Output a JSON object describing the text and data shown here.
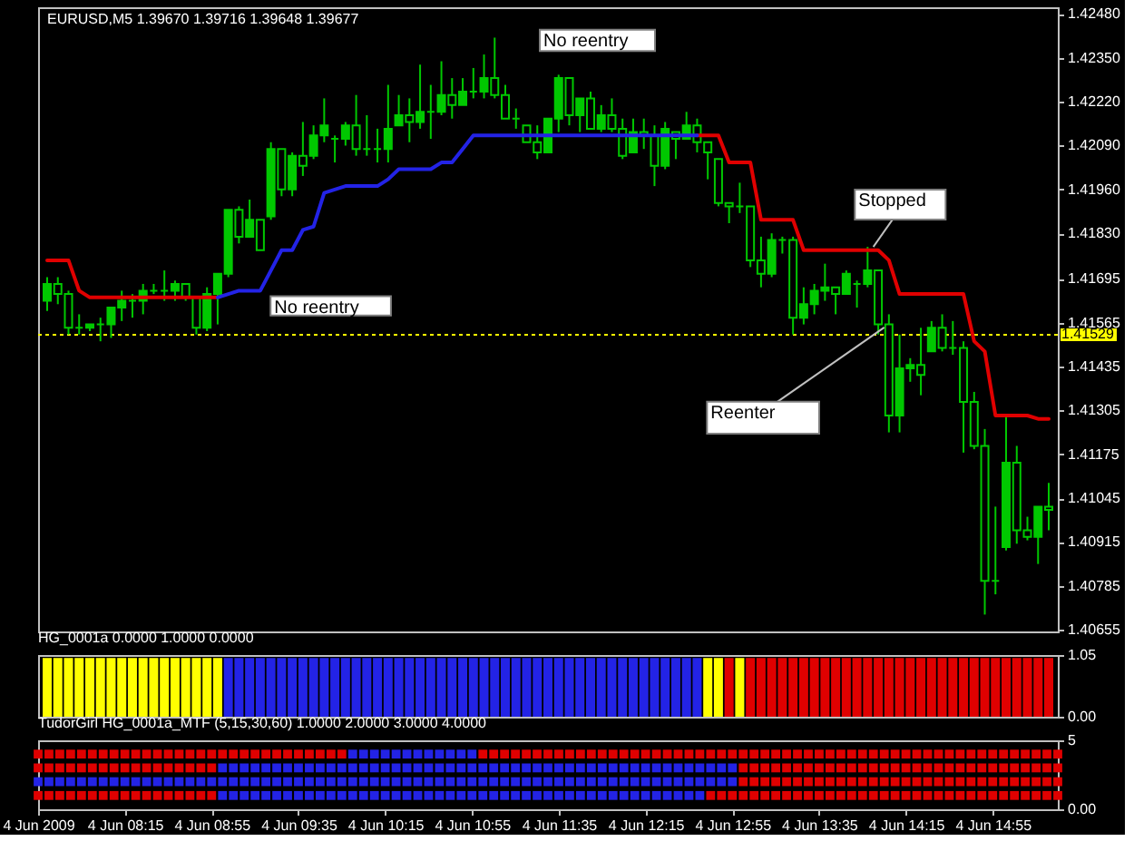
{
  "chart_data": [
    {
      "type": "candlestick",
      "title": "EURUSD,M5 1.39670 1.39716 1.39648 1.39677",
      "categories": [
        null,
        null,
        null,
        null,
        null,
        null,
        null,
        null,
        null,
        null,
        null,
        null,
        null,
        null,
        null,
        null,
        null,
        null,
        null,
        null,
        null,
        null,
        null,
        null,
        null,
        null,
        null,
        null,
        null,
        null,
        null,
        null,
        null,
        null,
        null,
        null,
        null,
        null,
        null,
        null,
        null,
        null,
        null,
        null,
        null,
        null,
        null,
        null,
        null,
        null,
        null,
        null,
        null,
        null,
        null,
        null,
        null,
        null,
        null,
        null,
        null,
        null,
        null,
        null,
        null,
        null,
        null,
        null,
        null,
        null,
        null,
        null,
        null,
        null,
        null,
        null,
        null,
        null,
        null,
        null,
        null,
        null,
        null,
        null,
        null,
        null,
        null,
        null,
        null,
        null,
        null,
        null,
        null,
        null,
        null
      ],
      "ohlc": [
        [
          1.4163,
          1.417,
          1.416,
          1.4168
        ],
        [
          1.4168,
          1.417,
          1.4162,
          1.4165
        ],
        [
          1.4165,
          1.4166,
          1.4153,
          1.4155
        ],
        [
          1.4155,
          1.4159,
          1.4153,
          1.4155
        ],
        [
          1.4155,
          1.4156,
          1.4154,
          1.4156
        ],
        [
          1.4156,
          1.4158,
          1.4151,
          1.4156
        ],
        [
          1.4156,
          1.4161,
          1.4152,
          1.4161
        ],
        [
          1.4161,
          1.4166,
          1.4157,
          1.4163
        ],
        [
          1.4163,
          1.4165,
          1.4158,
          1.4163
        ],
        [
          1.4163,
          1.4168,
          1.4159,
          1.4166
        ],
        [
          1.4166,
          1.4168,
          1.4165,
          1.4166
        ],
        [
          1.4166,
          1.4172,
          1.4163,
          1.4166
        ],
        [
          1.4166,
          1.4169,
          1.4163,
          1.4168
        ],
        [
          1.4168,
          1.4168,
          1.4163,
          1.4164
        ],
        [
          1.4164,
          1.4164,
          1.4153,
          1.4155
        ],
        [
          1.4155,
          1.4167,
          1.4154,
          1.4165
        ],
        [
          1.4165,
          1.4171,
          1.4156,
          1.4171
        ],
        [
          1.4171,
          1.419,
          1.417,
          1.419
        ],
        [
          1.419,
          1.4191,
          1.418,
          1.4182
        ],
        [
          1.4182,
          1.4193,
          1.4182,
          1.4187
        ],
        [
          1.4187,
          1.4187,
          1.4178,
          1.4178
        ],
        [
          1.4188,
          1.421,
          1.4187,
          1.4208
        ],
        [
          1.4208,
          1.4208,
          1.4194,
          1.4196
        ],
        [
          1.4196,
          1.4207,
          1.4194,
          1.4206
        ],
        [
          1.4206,
          1.4216,
          1.42,
          1.4203
        ],
        [
          1.4206,
          1.4215,
          1.4205,
          1.4212
        ],
        [
          1.4212,
          1.4223,
          1.421,
          1.4215
        ],
        [
          1.4211,
          1.4212,
          1.4204,
          1.4211
        ],
        [
          1.4211,
          1.4216,
          1.4209,
          1.4215
        ],
        [
          1.4215,
          1.4224,
          1.4206,
          1.4208
        ],
        [
          1.4208,
          1.4218,
          1.4206,
          1.4208
        ],
        [
          1.4208,
          1.4214,
          1.4204,
          1.4208
        ],
        [
          1.4208,
          1.4227,
          1.4204,
          1.4214
        ],
        [
          1.4215,
          1.4224,
          1.4215,
          1.4218
        ],
        [
          1.4218,
          1.4223,
          1.421,
          1.4216
        ],
        [
          1.4216,
          1.4233,
          1.4214,
          1.4219
        ],
        [
          1.4219,
          1.4227,
          1.4211,
          1.4219
        ],
        [
          1.4219,
          1.4234,
          1.4218,
          1.4224
        ],
        [
          1.4224,
          1.4229,
          1.4217,
          1.4221
        ],
        [
          1.4221,
          1.4229,
          1.4221,
          1.4225
        ],
        [
          1.4225,
          1.4232,
          1.4223,
          1.4225
        ],
        [
          1.4225,
          1.4236,
          1.4223,
          1.4229
        ],
        [
          1.4229,
          1.4241,
          1.4223,
          1.4224
        ],
        [
          1.4224,
          1.4227,
          1.4217,
          1.4217
        ],
        [
          1.4217,
          1.422,
          1.4214,
          1.4217
        ],
        [
          1.4215,
          1.4215,
          1.421,
          1.421
        ],
        [
          1.421,
          1.4215,
          1.4205,
          1.4207
        ],
        [
          1.4207,
          1.4217,
          1.4207,
          1.4217
        ],
        [
          1.4217,
          1.423,
          1.4213,
          1.4229
        ],
        [
          1.4229,
          1.4229,
          1.4215,
          1.4218
        ],
        [
          1.4218,
          1.4223,
          1.4213,
          1.4223
        ],
        [
          1.4223,
          1.4225,
          1.4214,
          1.4214
        ],
        [
          1.4214,
          1.4221,
          1.4213,
          1.4218
        ],
        [
          1.4218,
          1.4223,
          1.4213,
          1.4214
        ],
        [
          1.4214,
          1.4217,
          1.4205,
          1.4206
        ],
        [
          1.4207,
          1.4217,
          1.4207,
          1.4213
        ],
        [
          1.4213,
          1.4217,
          1.4208,
          1.4212
        ],
        [
          1.4212,
          1.4215,
          1.4197,
          1.4203
        ],
        [
          1.4203,
          1.4216,
          1.4202,
          1.4214
        ],
        [
          1.4213,
          1.4213,
          1.4205,
          1.4211
        ],
        [
          1.4211,
          1.4219,
          1.4211,
          1.4215
        ],
        [
          1.4215,
          1.4217,
          1.4207,
          1.421
        ],
        [
          1.421,
          1.421,
          1.4199,
          1.4207
        ],
        [
          1.4205,
          1.4205,
          1.4191,
          1.4192
        ],
        [
          1.4192,
          1.4192,
          1.4186,
          1.4191
        ],
        [
          1.4191,
          1.4198,
          1.4189,
          1.4191
        ],
        [
          1.4191,
          1.4191,
          1.4173,
          1.4175
        ],
        [
          1.4175,
          1.4182,
          1.4167,
          1.4171
        ],
        [
          1.4171,
          1.4183,
          1.417,
          1.4181
        ],
        [
          1.4181,
          1.4182,
          1.4177,
          1.4181
        ],
        [
          1.4181,
          1.4182,
          1.4153,
          1.4158
        ],
        [
          1.4158,
          1.4167,
          1.4156,
          1.4162
        ],
        [
          1.4162,
          1.4168,
          1.4159,
          1.4166
        ],
        [
          1.4166,
          1.4174,
          1.4163,
          1.4167
        ],
        [
          1.4167,
          1.4167,
          1.4159,
          1.4165
        ],
        [
          1.4165,
          1.4172,
          1.4165,
          1.4171
        ],
        [
          1.4168,
          1.4169,
          1.4161,
          1.4168
        ],
        [
          1.4168,
          1.4179,
          1.4167,
          1.4172
        ],
        [
          1.4172,
          1.4172,
          1.4153,
          1.4156
        ],
        [
          1.4156,
          1.4159,
          1.4124,
          1.4129
        ],
        [
          1.4129,
          1.4153,
          1.4124,
          1.4143
        ],
        [
          1.4143,
          1.4146,
          1.4139,
          1.4144
        ],
        [
          1.4144,
          1.4155,
          1.4135,
          1.4141
        ],
        [
          1.4148,
          1.4157,
          1.4148,
          1.4155
        ],
        [
          1.4155,
          1.4159,
          1.4148,
          1.4149
        ],
        [
          1.4149,
          1.4157,
          1.4147,
          1.4149
        ],
        [
          1.4149,
          1.4151,
          1.4118,
          1.4133
        ],
        [
          1.4133,
          1.4136,
          1.4119,
          1.412
        ],
        [
          1.412,
          1.4125,
          1.407,
          1.408
        ],
        [
          1.408,
          1.4102,
          1.4076,
          1.408
        ],
        [
          1.409,
          1.4129,
          1.4089,
          1.4115
        ],
        [
          1.4115,
          1.412,
          1.4091,
          1.4095
        ],
        [
          1.4095,
          1.4099,
          1.4092,
          1.4093
        ],
        [
          1.4093,
          1.4102,
          1.4085,
          1.4102
        ],
        [
          1.4102,
          1.4109,
          1.4095,
          1.4101
        ]
      ],
      "color": "#00c800",
      "series": [
        {
          "type": "line",
          "color": "#e00000",
          "values": [
            1.4175,
            1.4175,
            1.4175,
            1.4166,
            1.4164,
            1.4164,
            1.4164,
            1.4164,
            1.4164,
            1.4164,
            1.4164,
            1.4164,
            1.4164,
            1.4164,
            1.4164,
            1.4164,
            1.4164,
            null,
            null,
            null,
            null,
            null,
            null,
            null,
            null,
            null,
            null,
            null,
            null,
            null,
            null,
            null,
            null,
            null,
            null,
            null,
            null,
            null,
            null,
            null,
            null,
            null,
            null,
            null,
            null,
            null,
            null,
            null,
            null,
            null,
            null,
            null,
            null,
            null,
            null,
            null,
            null,
            null,
            null,
            null,
            null,
            1.4212,
            1.4212,
            1.4212,
            1.4204,
            1.4204,
            1.4204,
            1.4187,
            1.4187,
            1.4187,
            1.4187,
            1.4178,
            1.4178,
            1.4178,
            1.4178,
            1.4178,
            1.4178,
            1.4178,
            1.4178,
            1.4175,
            1.4165,
            1.4165,
            1.4165,
            1.4165,
            1.4165,
            1.4165,
            1.4165,
            1.4151,
            1.4148,
            1.4129,
            1.4129,
            1.4129,
            1.4129,
            1.4128,
            1.4128
          ]
        },
        {
          "type": "line",
          "color": "#2323e6",
          "values": [
            null,
            null,
            null,
            null,
            null,
            null,
            null,
            null,
            null,
            null,
            null,
            null,
            null,
            null,
            null,
            null,
            1.4164,
            1.4165,
            1.4166,
            1.4166,
            1.4166,
            1.4172,
            1.4178,
            1.4178,
            1.4184,
            1.4185,
            1.4195,
            1.4196,
            1.4197,
            1.4197,
            1.4197,
            1.4197,
            1.4199,
            1.4202,
            1.4202,
            1.4202,
            1.4202,
            1.4204,
            1.4204,
            1.4208,
            1.4212,
            1.4212,
            1.4212,
            1.4212,
            1.4212,
            1.4212,
            1.4212,
            1.4212,
            1.4212,
            1.4212,
            1.4212,
            1.4212,
            1.4212,
            1.4212,
            1.4212,
            1.4212,
            1.4212,
            1.4212,
            1.4212,
            1.4212,
            1.4212,
            1.4212,
            null,
            null,
            null,
            null,
            null,
            null,
            null,
            null,
            null,
            null,
            null,
            null,
            null,
            null,
            null,
            null,
            null,
            null,
            null,
            null,
            null,
            null,
            null,
            null,
            null,
            null,
            null,
            null,
            null,
            null,
            null,
            null,
            null
          ]
        }
      ],
      "ylim": [
        1.4065,
        1.425
      ],
      "yticks": [
        {
          "value": 1.4248,
          "label": "1.42480"
        },
        {
          "value": 1.4235,
          "label": "1.42350"
        },
        {
          "value": 1.4222,
          "label": "1.42220"
        },
        {
          "value": 1.4209,
          "label": "1.42090"
        },
        {
          "value": 1.4196,
          "label": "1.41960"
        },
        {
          "value": 1.4183,
          "label": "1.41830"
        },
        1.41695,
        1.41565,
        1.41435,
        1.41305,
        1.41175,
        1.41045,
        1.40915,
        1.40785,
        1.40655
      ],
      "ref_lines": [
        {
          "axis": "y",
          "value": 1.41529,
          "label": "1.41529",
          "color": "#ffff00",
          "line_style": "dotted"
        }
      ],
      "annotations": [
        "No reentry",
        "Stopped",
        "No reentry",
        "Reenter"
      ],
      "tick_labels": "y"
    },
    {
      "type": "bar",
      "title": "HG_0001a 0.0000 1.0000 0.0000",
      "categories": [
        null,
        null,
        null,
        null,
        null,
        null,
        null,
        null,
        null,
        null,
        null,
        null,
        null,
        null,
        null,
        null,
        null,
        null,
        null,
        null,
        null,
        null,
        null,
        null,
        null,
        null,
        null,
        null,
        null,
        null,
        null,
        null,
        null,
        null,
        null,
        null,
        null,
        null,
        null,
        null,
        null,
        null,
        null,
        null,
        null,
        null,
        null,
        null,
        null,
        null,
        null,
        null,
        null,
        null,
        null,
        null,
        null,
        null,
        null,
        null,
        null,
        null,
        null,
        null,
        null,
        null,
        null,
        null,
        null,
        null,
        null,
        null,
        null,
        null,
        null,
        null,
        null,
        null,
        null,
        null,
        null,
        null,
        null,
        null,
        null,
        null,
        null,
        null,
        null,
        null,
        null,
        null,
        null,
        null,
        null
      ],
      "values": [
        1,
        1,
        1,
        1,
        1,
        1,
        1,
        1,
        1,
        1,
        1,
        1,
        1,
        1,
        1,
        1,
        1,
        1,
        1,
        1,
        1,
        1,
        1,
        1,
        1,
        1,
        1,
        1,
        1,
        1,
        1,
        1,
        1,
        1,
        1,
        1,
        1,
        1,
        1,
        1,
        1,
        1,
        1,
        1,
        1,
        1,
        1,
        1,
        1,
        1,
        1,
        1,
        1,
        1,
        1,
        1,
        1,
        1,
        1,
        1,
        1,
        1,
        1,
        1,
        1,
        1,
        1,
        1,
        1,
        1,
        1,
        1,
        1,
        1,
        1,
        1,
        1,
        1,
        1,
        1,
        1,
        1,
        1,
        1,
        1,
        1,
        1,
        1,
        1,
        1,
        1,
        1,
        1,
        1,
        1
      ],
      "colors": [
        "#ffff00",
        "#ffff00",
        "#ffff00",
        "#ffff00",
        "#ffff00",
        "#ffff00",
        "#ffff00",
        "#ffff00",
        "#ffff00",
        "#ffff00",
        "#ffff00",
        "#ffff00",
        "#ffff00",
        "#ffff00",
        "#ffff00",
        "#ffff00",
        "#ffff00",
        "#2323e6",
        "#2323e6",
        "#2323e6",
        "#2323e6",
        "#2323e6",
        "#2323e6",
        "#2323e6",
        "#2323e6",
        "#2323e6",
        "#2323e6",
        "#2323e6",
        "#2323e6",
        "#2323e6",
        "#2323e6",
        "#2323e6",
        "#2323e6",
        "#2323e6",
        "#2323e6",
        "#2323e6",
        "#2323e6",
        "#2323e6",
        "#2323e6",
        "#2323e6",
        "#2323e6",
        "#2323e6",
        "#2323e6",
        "#2323e6",
        "#2323e6",
        "#2323e6",
        "#2323e6",
        "#2323e6",
        "#2323e6",
        "#2323e6",
        "#2323e6",
        "#2323e6",
        "#2323e6",
        "#2323e6",
        "#2323e6",
        "#2323e6",
        "#2323e6",
        "#2323e6",
        "#2323e6",
        "#2323e6",
        "#2323e6",
        "#2323e6",
        "#ffff00",
        "#ffff00",
        "#e00000",
        "#ffff00",
        "#e00000",
        "#e00000",
        "#e00000",
        "#e00000",
        "#e00000",
        "#e00000",
        "#e00000",
        "#e00000",
        "#e00000",
        "#e00000",
        "#e00000",
        "#e00000",
        "#e00000",
        "#e00000",
        "#e00000",
        "#e00000",
        "#e00000",
        "#e00000",
        "#e00000",
        "#e00000",
        "#e00000",
        "#e00000",
        "#e00000",
        "#e00000",
        "#e00000",
        "#e00000",
        "#e00000",
        "#e00000",
        "#e00000"
      ],
      "ylim": [
        0,
        1.05
      ],
      "yticks": [
        1.05,
        {
          "value": 0,
          "label": "0.00"
        }
      ],
      "tick_labels": "y"
    },
    {
      "type": "scatter",
      "title": "TudorGirl HG_0001a_MTF (5,15,30,60) 1.0000 2.0000 3.0000 4.0000",
      "categories": [
        "4 Jun 2009",
        null,
        null,
        null,
        null,
        null,
        null,
        null,
        "4 Jun 08:15",
        null,
        null,
        null,
        null,
        null,
        null,
        null,
        "4 Jun 08:55",
        null,
        null,
        null,
        null,
        null,
        null,
        null,
        "4 Jun 09:35",
        null,
        null,
        null,
        null,
        null,
        null,
        null,
        "4 Jun 10:15",
        null,
        null,
        null,
        null,
        null,
        null,
        null,
        "4 Jun 10:55",
        null,
        null,
        null,
        null,
        null,
        null,
        null,
        "4 Jun 11:35",
        null,
        null,
        null,
        null,
        null,
        null,
        null,
        "4 Jun 12:15",
        null,
        null,
        null,
        null,
        null,
        null,
        null,
        "4 Jun 12:55",
        null,
        null,
        null,
        null,
        null,
        null,
        null,
        "4 Jun 13:35",
        null,
        null,
        null,
        null,
        null,
        null,
        null,
        "4 Jun 14:15",
        null,
        null,
        null,
        null,
        null,
        null,
        null,
        "4 Jun 14:55",
        null,
        null,
        null,
        null,
        null,
        null
      ],
      "marker": "square",
      "series": [
        {
          "values": [
            4,
            4,
            4,
            4,
            4,
            4,
            4,
            4,
            4,
            4,
            4,
            4,
            4,
            4,
            4,
            4,
            4,
            4,
            4,
            4,
            4,
            4,
            4,
            4,
            4,
            4,
            4,
            4,
            4,
            4,
            4,
            4,
            4,
            4,
            4,
            4,
            4,
            4,
            4,
            4,
            4,
            4,
            4,
            4,
            4,
            4,
            4,
            4,
            4,
            4,
            4,
            4,
            4,
            4,
            4,
            4,
            4,
            4,
            4,
            4,
            4,
            4,
            4,
            4,
            4,
            4,
            4,
            4,
            4,
            4,
            4,
            4,
            4,
            4,
            4,
            4,
            4,
            4,
            4,
            4,
            4,
            4,
            4,
            4,
            4,
            4,
            4,
            4,
            4,
            4,
            4,
            4,
            4,
            4,
            4
          ],
          "colors": [
            "#e00000",
            "#e00000",
            "#e00000",
            "#e00000",
            "#e00000",
            "#e00000",
            "#e00000",
            "#e00000",
            "#e00000",
            "#e00000",
            "#e00000",
            "#e00000",
            "#e00000",
            "#e00000",
            "#e00000",
            "#e00000",
            "#e00000",
            "#e00000",
            "#e00000",
            "#e00000",
            "#e00000",
            "#e00000",
            "#e00000",
            "#e00000",
            "#e00000",
            "#e00000",
            "#e00000",
            "#e00000",
            "#e00000",
            "#2323e6",
            "#2323e6",
            "#2323e6",
            "#2323e6",
            "#2323e6",
            "#2323e6",
            "#2323e6",
            "#2323e6",
            "#2323e6",
            "#2323e6",
            "#2323e6",
            "#2323e6",
            "#e00000",
            "#e00000",
            "#e00000",
            "#e00000",
            "#e00000",
            "#e00000",
            "#e00000",
            "#e00000",
            "#e00000",
            "#e00000",
            "#e00000",
            "#e00000",
            "#e00000",
            "#e00000",
            "#e00000",
            "#e00000",
            "#e00000",
            "#e00000",
            "#e00000",
            "#e00000",
            "#e00000",
            "#e00000",
            "#e00000",
            "#e00000",
            "#e00000",
            "#e00000",
            "#e00000",
            "#e00000",
            "#e00000",
            "#e00000",
            "#e00000",
            "#e00000",
            "#e00000",
            "#e00000",
            "#e00000",
            "#e00000",
            "#e00000",
            "#e00000",
            "#e00000",
            "#e00000",
            "#e00000",
            "#e00000",
            "#e00000",
            "#e00000",
            "#e00000",
            "#e00000",
            "#e00000",
            "#e00000",
            "#e00000",
            "#e00000",
            "#e00000",
            "#e00000",
            "#e00000",
            "#e00000"
          ]
        },
        {
          "values": [
            3,
            3,
            3,
            3,
            3,
            3,
            3,
            3,
            3,
            3,
            3,
            3,
            3,
            3,
            3,
            3,
            3,
            3,
            3,
            3,
            3,
            3,
            3,
            3,
            3,
            3,
            3,
            3,
            3,
            3,
            3,
            3,
            3,
            3,
            3,
            3,
            3,
            3,
            3,
            3,
            3,
            3,
            3,
            3,
            3,
            3,
            3,
            3,
            3,
            3,
            3,
            3,
            3,
            3,
            3,
            3,
            3,
            3,
            3,
            3,
            3,
            3,
            3,
            3,
            3,
            3,
            3,
            3,
            3,
            3,
            3,
            3,
            3,
            3,
            3,
            3,
            3,
            3,
            3,
            3,
            3,
            3,
            3,
            3,
            3,
            3,
            3,
            3,
            3,
            3,
            3,
            3,
            3,
            3,
            3
          ],
          "colors": [
            "#e00000",
            "#e00000",
            "#e00000",
            "#e00000",
            "#e00000",
            "#e00000",
            "#e00000",
            "#e00000",
            "#e00000",
            "#e00000",
            "#e00000",
            "#e00000",
            "#e00000",
            "#e00000",
            "#e00000",
            "#e00000",
            "#e00000",
            "#2323e6",
            "#2323e6",
            "#2323e6",
            "#2323e6",
            "#2323e6",
            "#2323e6",
            "#2323e6",
            "#2323e6",
            "#2323e6",
            "#2323e6",
            "#2323e6",
            "#2323e6",
            "#2323e6",
            "#2323e6",
            "#2323e6",
            "#2323e6",
            "#2323e6",
            "#2323e6",
            "#2323e6",
            "#2323e6",
            "#2323e6",
            "#2323e6",
            "#2323e6",
            "#2323e6",
            "#2323e6",
            "#2323e6",
            "#2323e6",
            "#2323e6",
            "#2323e6",
            "#2323e6",
            "#2323e6",
            "#2323e6",
            "#2323e6",
            "#2323e6",
            "#2323e6",
            "#2323e6",
            "#2323e6",
            "#2323e6",
            "#2323e6",
            "#2323e6",
            "#2323e6",
            "#2323e6",
            "#2323e6",
            "#2323e6",
            "#2323e6",
            "#2323e6",
            "#2323e6",
            "#2323e6",
            "#e00000",
            "#e00000",
            "#e00000",
            "#e00000",
            "#e00000",
            "#e00000",
            "#e00000",
            "#e00000",
            "#e00000",
            "#e00000",
            "#e00000",
            "#e00000",
            "#e00000",
            "#e00000",
            "#e00000",
            "#e00000",
            "#e00000",
            "#e00000",
            "#e00000",
            "#e00000",
            "#e00000",
            "#e00000",
            "#e00000",
            "#e00000",
            "#e00000",
            "#e00000",
            "#e00000",
            "#e00000",
            "#e00000",
            "#e00000"
          ]
        },
        {
          "values": [
            2,
            2,
            2,
            2,
            2,
            2,
            2,
            2,
            2,
            2,
            2,
            2,
            2,
            2,
            2,
            2,
            2,
            2,
            2,
            2,
            2,
            2,
            2,
            2,
            2,
            2,
            2,
            2,
            2,
            2,
            2,
            2,
            2,
            2,
            2,
            2,
            2,
            2,
            2,
            2,
            2,
            2,
            2,
            2,
            2,
            2,
            2,
            2,
            2,
            2,
            2,
            2,
            2,
            2,
            2,
            2,
            2,
            2,
            2,
            2,
            2,
            2,
            2,
            2,
            2,
            2,
            2,
            2,
            2,
            2,
            2,
            2,
            2,
            2,
            2,
            2,
            2,
            2,
            2,
            2,
            2,
            2,
            2,
            2,
            2,
            2,
            2,
            2,
            2,
            2,
            2,
            2,
            2,
            2,
            2
          ],
          "colors": [
            "#2323e6",
            "#2323e6",
            "#2323e6",
            "#2323e6",
            "#2323e6",
            "#2323e6",
            "#2323e6",
            "#2323e6",
            "#2323e6",
            "#2323e6",
            "#2323e6",
            "#2323e6",
            "#2323e6",
            "#2323e6",
            "#2323e6",
            "#2323e6",
            "#2323e6",
            "#2323e6",
            "#2323e6",
            "#2323e6",
            "#2323e6",
            "#2323e6",
            "#2323e6",
            "#2323e6",
            "#2323e6",
            "#2323e6",
            "#2323e6",
            "#2323e6",
            "#2323e6",
            "#2323e6",
            "#2323e6",
            "#2323e6",
            "#2323e6",
            "#2323e6",
            "#2323e6",
            "#2323e6",
            "#2323e6",
            "#2323e6",
            "#2323e6",
            "#2323e6",
            "#2323e6",
            "#2323e6",
            "#2323e6",
            "#2323e6",
            "#2323e6",
            "#2323e6",
            "#2323e6",
            "#2323e6",
            "#2323e6",
            "#2323e6",
            "#2323e6",
            "#2323e6",
            "#2323e6",
            "#2323e6",
            "#2323e6",
            "#2323e6",
            "#2323e6",
            "#2323e6",
            "#2323e6",
            "#2323e6",
            "#2323e6",
            "#2323e6",
            "#2323e6",
            "#2323e6",
            "#2323e6",
            "#e00000",
            "#e00000",
            "#e00000",
            "#e00000",
            "#e00000",
            "#e00000",
            "#e00000",
            "#e00000",
            "#e00000",
            "#e00000",
            "#e00000",
            "#e00000",
            "#e00000",
            "#e00000",
            "#e00000",
            "#e00000",
            "#e00000",
            "#e00000",
            "#e00000",
            "#e00000",
            "#e00000",
            "#e00000",
            "#e00000",
            "#e00000",
            "#e00000",
            "#e00000",
            "#e00000",
            "#e00000",
            "#e00000",
            "#e00000"
          ]
        },
        {
          "values": [
            1,
            1,
            1,
            1,
            1,
            1,
            1,
            1,
            1,
            1,
            1,
            1,
            1,
            1,
            1,
            1,
            1,
            1,
            1,
            1,
            1,
            1,
            1,
            1,
            1,
            1,
            1,
            1,
            1,
            1,
            1,
            1,
            1,
            1,
            1,
            1,
            1,
            1,
            1,
            1,
            1,
            1,
            1,
            1,
            1,
            1,
            1,
            1,
            1,
            1,
            1,
            1,
            1,
            1,
            1,
            1,
            1,
            1,
            1,
            1,
            1,
            1,
            1,
            1,
            1,
            1,
            1,
            1,
            1,
            1,
            1,
            1,
            1,
            1,
            1,
            1,
            1,
            1,
            1,
            1,
            1,
            1,
            1,
            1,
            1,
            1,
            1,
            1,
            1,
            1,
            1,
            1,
            1,
            1,
            1
          ],
          "colors": [
            "#e00000",
            "#e00000",
            "#e00000",
            "#e00000",
            "#e00000",
            "#e00000",
            "#e00000",
            "#e00000",
            "#e00000",
            "#e00000",
            "#e00000",
            "#e00000",
            "#e00000",
            "#e00000",
            "#e00000",
            "#e00000",
            "#e00000",
            "#2323e6",
            "#2323e6",
            "#2323e6",
            "#2323e6",
            "#2323e6",
            "#2323e6",
            "#2323e6",
            "#2323e6",
            "#2323e6",
            "#2323e6",
            "#2323e6",
            "#2323e6",
            "#2323e6",
            "#2323e6",
            "#2323e6",
            "#2323e6",
            "#2323e6",
            "#2323e6",
            "#2323e6",
            "#2323e6",
            "#2323e6",
            "#2323e6",
            "#2323e6",
            "#2323e6",
            "#2323e6",
            "#2323e6",
            "#2323e6",
            "#2323e6",
            "#2323e6",
            "#2323e6",
            "#2323e6",
            "#2323e6",
            "#2323e6",
            "#2323e6",
            "#2323e6",
            "#2323e6",
            "#2323e6",
            "#2323e6",
            "#2323e6",
            "#2323e6",
            "#2323e6",
            "#2323e6",
            "#2323e6",
            "#2323e6",
            "#2323e6",
            "#e00000",
            "#e00000",
            "#e00000",
            "#e00000",
            "#e00000",
            "#e00000",
            "#e00000",
            "#e00000",
            "#e00000",
            "#e00000",
            "#e00000",
            "#e00000",
            "#e00000",
            "#e00000",
            "#e00000",
            "#e00000",
            "#e00000",
            "#e00000",
            "#e00000",
            "#e00000",
            "#e00000",
            "#e00000",
            "#e00000",
            "#e00000",
            "#e00000",
            "#e00000",
            "#e00000",
            "#e00000",
            "#e00000",
            "#e00000",
            "#e00000",
            "#e00000",
            "#e00000"
          ]
        }
      ],
      "ylim": [
        0,
        5
      ],
      "yticks": [
        5,
        {
          "value": 0,
          "label": "0.00"
        }
      ]
    }
  ]
}
